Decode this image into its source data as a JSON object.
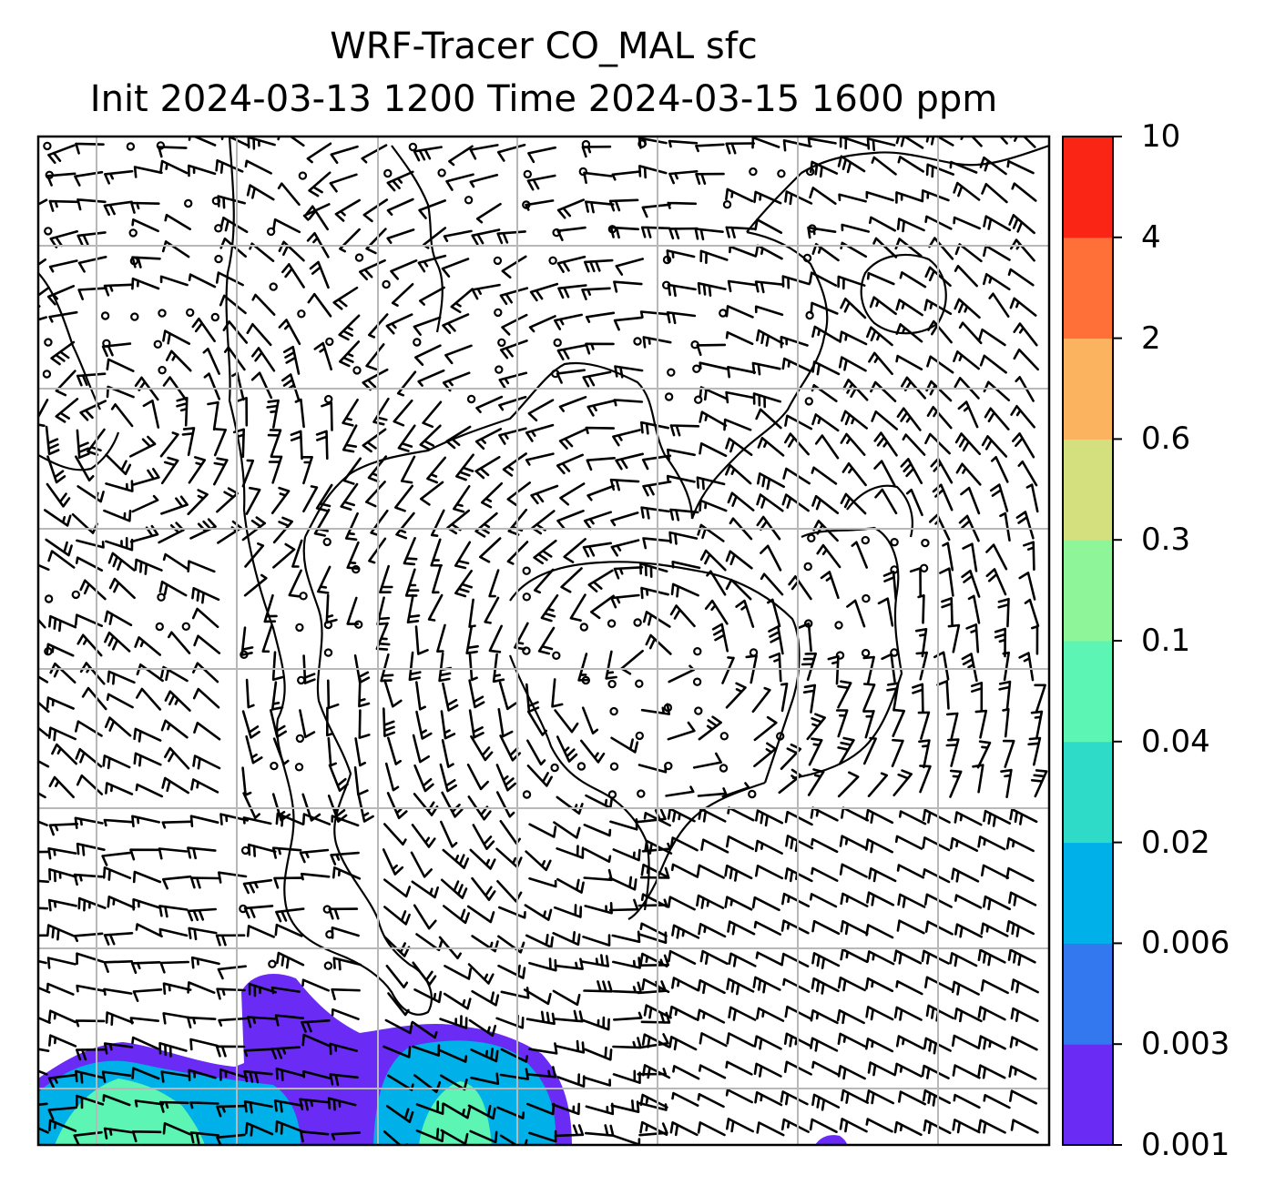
{
  "title": {
    "line1": "WRF-Tracer CO_MAL sfc",
    "line2": "Init 2024-03-13 1200 Time 2024-03-15 1600 ppm"
  },
  "colorbar": {
    "labels": [
      "0.001",
      "0.003",
      "0.006",
      "0.02",
      "0.04",
      "0.1",
      "0.3",
      "0.6",
      "2",
      "4",
      "10"
    ],
    "colors": [
      "#6a2cf5",
      "#3478f0",
      "#00b0e8",
      "#2ddbc8",
      "#5cf5b4",
      "#8ef598",
      "#d4e07e",
      "#fcb360",
      "#ff7038",
      "#fa2514"
    ]
  },
  "map": {
    "grid": "on",
    "colors": {
      "plume_low": "#6a2cf5",
      "plume_mid": "#00b0e8",
      "plume_high": "#5cf5b4",
      "grid": "#b8b8b8",
      "coast": "#000000"
    }
  }
}
